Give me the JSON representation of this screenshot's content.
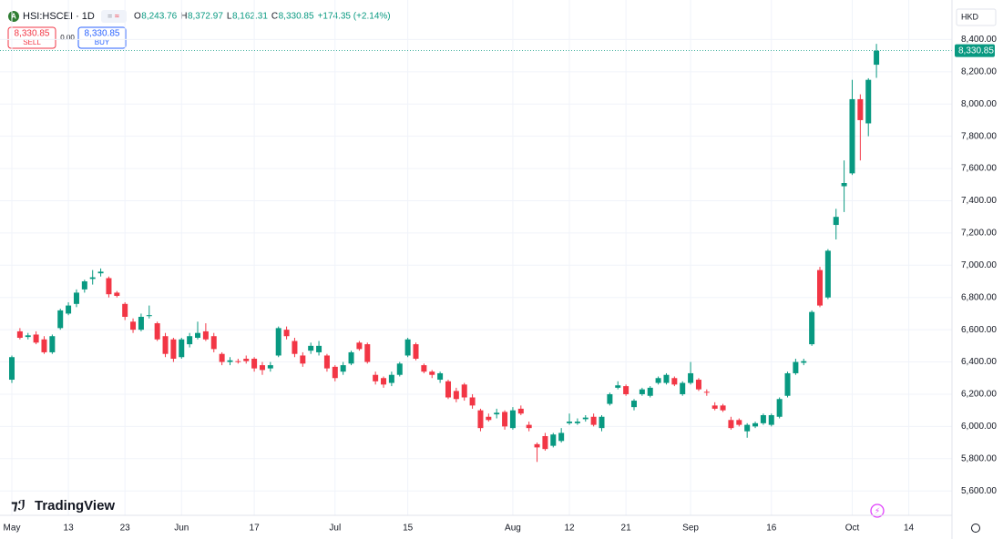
{
  "header": {
    "badge": "A",
    "symbol": "HSI:HSCEI · 1D",
    "ohlc": [
      {
        "key": "O",
        "value": "8,243.76"
      },
      {
        "key": "H",
        "value": "8,372.97"
      },
      {
        "key": "L",
        "value": "8,162.31"
      },
      {
        "key": "C",
        "value": "8,330.85"
      }
    ],
    "change": "+174.35 (+2.14%)",
    "sell_price": "8,330.85",
    "sell": "SELL",
    "spread": "0.00",
    "buy_price": "8,330.85",
    "buy": "BUY",
    "currency": "HKD",
    "logo": "TradingView"
  },
  "chart_data": {
    "type": "candlestick",
    "up_color": "#089981",
    "down_color": "#f23645",
    "grid": true,
    "last_price_label": "8,330.85",
    "categories": [
      "May",
      null,
      null,
      null,
      null,
      null,
      null,
      "13",
      null,
      null,
      null,
      null,
      null,
      null,
      "23",
      null,
      null,
      null,
      null,
      null,
      null,
      "Jun",
      null,
      null,
      null,
      null,
      null,
      null,
      null,
      null,
      "17",
      null,
      null,
      null,
      null,
      null,
      null,
      null,
      null,
      null,
      "Jul",
      null,
      null,
      null,
      null,
      null,
      null,
      null,
      null,
      "15",
      null,
      null,
      null,
      null,
      null,
      null,
      null,
      null,
      null,
      null,
      null,
      null,
      "Aug",
      null,
      null,
      null,
      null,
      null,
      null,
      "12",
      null,
      null,
      null,
      null,
      null,
      null,
      "21",
      null,
      null,
      null,
      null,
      null,
      null,
      null,
      "Sep",
      null,
      null,
      null,
      null,
      null,
      null,
      null,
      null,
      null,
      "16",
      null,
      null,
      null,
      null,
      null,
      null,
      null,
      null,
      null,
      "Oct",
      null,
      null,
      null,
      null,
      null,
      null,
      "14"
    ],
    "open": [
      6290,
      6590,
      6555,
      6570,
      6540,
      6460,
      6610,
      6700,
      6760,
      6850,
      6915,
      6950,
      6920,
      6830,
      6760,
      6650,
      6600,
      6685,
      6640,
      6560,
      6540,
      6430,
      6510,
      6550,
      6590,
      6560,
      6450,
      6400,
      6405,
      6420,
      6420,
      6380,
      6360,
      6440,
      6600,
      6530,
      6440,
      6470,
      6460,
      6440,
      6370,
      6340,
      6390,
      6520,
      6510,
      6320,
      6300,
      6270,
      6320,
      6440,
      6510,
      6380,
      6340,
      6290,
      6280,
      6220,
      6260,
      6180,
      6100,
      6060,
      6075,
      6090,
      5990,
      6110,
      6010,
      5890,
      5940,
      5880,
      5910,
      6020,
      6020,
      6045,
      6060,
      5990,
      6140,
      6240,
      6250,
      6120,
      6200,
      6190,
      6270,
      6270,
      6300,
      6200,
      6270,
      6290,
      6215,
      6130,
      6130,
      6040,
      6040,
      5970,
      6000,
      6020,
      6010,
      6060,
      6190,
      6330,
      6395,
      6510,
      6970,
      6800,
      7250,
      7490,
      7570,
      8030,
      7880,
      8243.76,
      null,
      null,
      null,
      null
    ],
    "high": [
      6440,
      6610,
      6580,
      6590,
      6560,
      6570,
      6730,
      6770,
      6850,
      6910,
      6970,
      6980,
      6930,
      6840,
      6770,
      6670,
      6700,
      6750,
      6650,
      6580,
      6550,
      6550,
      6580,
      6650,
      6640,
      6580,
      6460,
      6430,
      6420,
      6440,
      6430,
      6400,
      6400,
      6620,
      6620,
      6550,
      6460,
      6520,
      6530,
      6450,
      6380,
      6400,
      6470,
      6530,
      6520,
      6340,
      6310,
      6340,
      6400,
      6550,
      6520,
      6390,
      6350,
      6340,
      6290,
      6240,
      6270,
      6200,
      6110,
      6080,
      6110,
      6100,
      6120,
      6130,
      6030,
      5900,
      5960,
      5960,
      5990,
      6080,
      6050,
      6070,
      6080,
      6070,
      6210,
      6280,
      6260,
      6170,
      6240,
      6250,
      6310,
      6330,
      6310,
      6280,
      6400,
      6300,
      6230,
      6150,
      6140,
      6060,
      6050,
      6020,
      6030,
      6080,
      6080,
      6180,
      6340,
      6420,
      6420,
      6720,
      6990,
      7100,
      7350,
      7650,
      8150,
      8060,
      8160,
      8372.97,
      null,
      null,
      null,
      null
    ],
    "low": [
      6270,
      6540,
      6540,
      6510,
      6450,
      6450,
      6600,
      6690,
      6740,
      6830,
      6880,
      6930,
      6800,
      6800,
      6660,
      6580,
      6590,
      6670,
      6530,
      6430,
      6400,
      6420,
      6490,
      6540,
      6530,
      6460,
      6380,
      6380,
      6390,
      6390,
      6340,
      6320,
      6340,
      6430,
      6540,
      6430,
      6370,
      6450,
      6440,
      6340,
      6280,
      6320,
      6380,
      6470,
      6390,
      6260,
      6240,
      6250,
      6310,
      6430,
      6410,
      6330,
      6300,
      6270,
      6170,
      6150,
      6160,
      6110,
      5970,
      6030,
      6050,
      5980,
      5980,
      6070,
      5970,
      5780,
      5850,
      5870,
      5900,
      6010,
      6010,
      6030,
      6000,
      5970,
      6130,
      6230,
      6190,
      6100,
      6190,
      6180,
      6260,
      6260,
      6250,
      6190,
      6260,
      6220,
      6190,
      6100,
      6090,
      5980,
      6000,
      5930,
      5990,
      6010,
      6000,
      6050,
      6180,
      6320,
      6380,
      6500,
      6740,
      6790,
      7160,
      7330,
      7560,
      7650,
      7800,
      8162.31,
      null,
      null,
      null,
      null
    ],
    "close": [
      6430,
      6550,
      6565,
      6520,
      6460,
      6560,
      6720,
      6750,
      6830,
      6900,
      6925,
      6960,
      6820,
      6810,
      6680,
      6600,
      6680,
      6690,
      6540,
      6450,
      6420,
      6540,
      6560,
      6580,
      6540,
      6480,
      6400,
      6410,
      6400,
      6405,
      6360,
      6350,
      6380,
      6610,
      6560,
      6450,
      6390,
      6500,
      6500,
      6360,
      6300,
      6380,
      6460,
      6480,
      6400,
      6280,
      6260,
      6320,
      6390,
      6540,
      6420,
      6340,
      6320,
      6330,
      6180,
      6170,
      6180,
      6130,
      5990,
      6040,
      6085,
      6000,
      6100,
      6080,
      5990,
      5870,
      5860,
      5950,
      5960,
      6030,
      6030,
      6055,
      6010,
      6060,
      6200,
      6255,
      6200,
      6160,
      6230,
      6240,
      6300,
      6320,
      6260,
      6270,
      6330,
      6230,
      6210,
      6110,
      6100,
      5990,
      6010,
      6010,
      6020,
      6070,
      6070,
      6170,
      6330,
      6400,
      6405,
      6710,
      6750,
      7090,
      7300,
      7510,
      8030,
      7900,
      8150,
      8330.85,
      null,
      null,
      null,
      null
    ],
    "ylim": [
      5460,
      8600
    ],
    "yticks": [
      {
        "value": 5600,
        "label": "5,600.00"
      },
      {
        "value": 5800,
        "label": "5,800.00"
      },
      {
        "value": 6000,
        "label": "6,000.00"
      },
      {
        "value": 6200,
        "label": "6,200.00"
      },
      {
        "value": 6400,
        "label": "6,400.00"
      },
      {
        "value": 6600,
        "label": "6,600.00"
      },
      {
        "value": 6800,
        "label": "6,800.00"
      },
      {
        "value": 7000,
        "label": "7,000.00"
      },
      {
        "value": 7200,
        "label": "7,200.00"
      },
      {
        "value": 7400,
        "label": "7,400.00"
      },
      {
        "value": 7600,
        "label": "7,600.00"
      },
      {
        "value": 7800,
        "label": "7,800.00"
      },
      {
        "value": 8000,
        "label": "8,000.00"
      },
      {
        "value": 8200,
        "label": "8,200.00"
      },
      {
        "value": 8400,
        "label": "8,400.00"
      }
    ]
  }
}
